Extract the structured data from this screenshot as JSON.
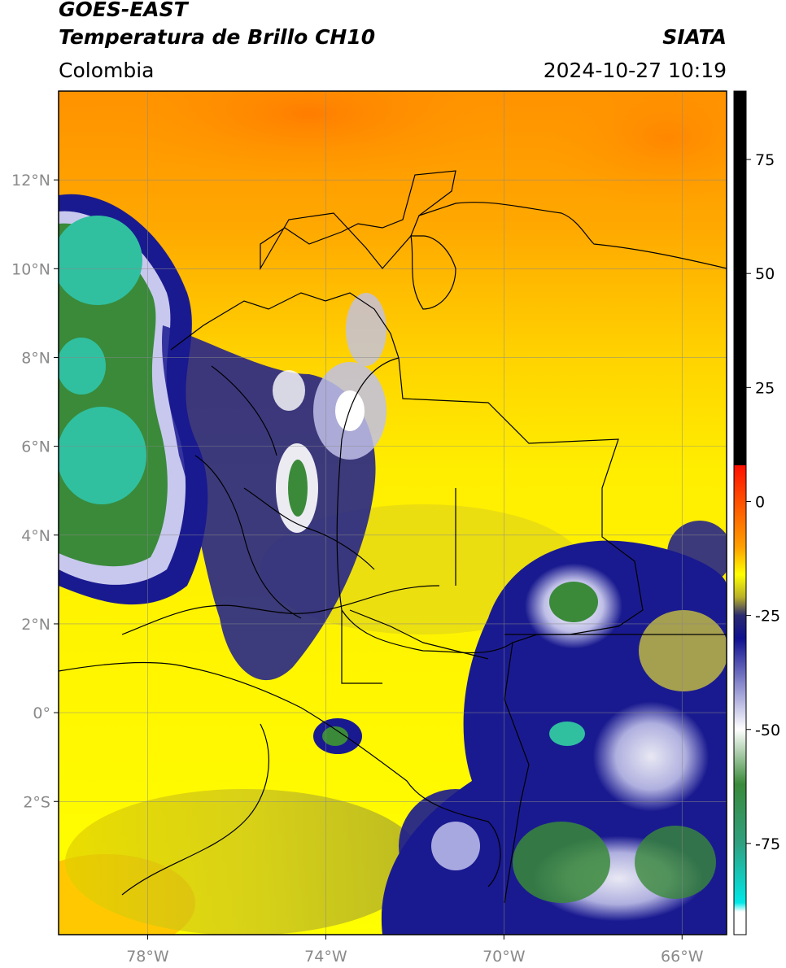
{
  "header": {
    "satellite": "GOES-EAST",
    "product": "Temperatura de Brillo CH10",
    "brand": "SIATA",
    "region": "Colombia",
    "datetime": "2024-10-27 10:19"
  },
  "map": {
    "lon_range": [
      -80,
      -65
    ],
    "lat_range": [
      -5,
      14
    ],
    "lat_ticks": [
      {
        "value": 12,
        "label": "12°N"
      },
      {
        "value": 10,
        "label": "10°N"
      },
      {
        "value": 8,
        "label": "8°N"
      },
      {
        "value": 6,
        "label": "6°N"
      },
      {
        "value": 4,
        "label": "4°N"
      },
      {
        "value": 2,
        "label": "2°N"
      },
      {
        "value": 0,
        "label": "0°"
      },
      {
        "value": -2,
        "label": "2°S"
      }
    ],
    "lon_ticks": [
      {
        "value": -78,
        "label": "78°W"
      },
      {
        "value": -74,
        "label": "74°W"
      },
      {
        "value": -70,
        "label": "70°W"
      },
      {
        "value": -66,
        "label": "66°W"
      }
    ],
    "colors": {
      "warm": "#ff9000",
      "mild": "#ffd000",
      "yellow": "#ffff00",
      "olive": "#c8c020",
      "navy": "#141488",
      "white": "#ffffff",
      "green": "#3a8a3a",
      "teal": "#30c0a0"
    }
  },
  "colorbar": {
    "range": [
      -95,
      90
    ],
    "ticks": [
      75,
      50,
      25,
      0,
      -25,
      -50,
      -75
    ],
    "stops": [
      {
        "value": 90,
        "color": "#000000"
      },
      {
        "value": 8,
        "color": "#000000"
      },
      {
        "value": 7.9,
        "color": "#ff1000"
      },
      {
        "value": -10,
        "color": "#ffa000"
      },
      {
        "value": -16,
        "color": "#ffff00"
      },
      {
        "value": -21,
        "color": "#b8b028"
      },
      {
        "value": -25,
        "color": "#2a2a70"
      },
      {
        "value": -30,
        "color": "#101090"
      },
      {
        "value": -42,
        "color": "#a0a0d8"
      },
      {
        "value": -50,
        "color": "#ffffff"
      },
      {
        "value": -62,
        "color": "#3a8a3a"
      },
      {
        "value": -75,
        "color": "#30a080"
      },
      {
        "value": -88,
        "color": "#00e8e8"
      },
      {
        "value": -90,
        "color": "#ffffff"
      },
      {
        "value": -95,
        "color": "#ffffff"
      }
    ]
  }
}
